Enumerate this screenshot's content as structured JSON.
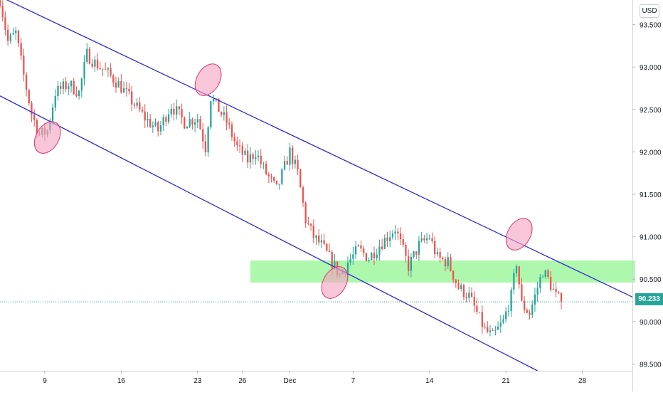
{
  "currency": "USD",
  "last_price_label": "90.233",
  "colors": {
    "up": "#26a69a",
    "down": "#ef5350",
    "channel": "#2b2bd6",
    "zone": "#8ef58e",
    "marker_fill": "#f4a3c0",
    "marker_stroke": "#d83a6e",
    "last_price_line": "#26a69a"
  },
  "chart_data": {
    "type": "candlestick",
    "title": "",
    "xlabel": "",
    "ylabel": "",
    "ylim": [
      89.42,
      93.79
    ],
    "y_ticks": [
      "93.500",
      "93.000",
      "92.500",
      "92.000",
      "91.500",
      "91.000",
      "90.500",
      "90.000",
      "89.500"
    ],
    "y_tick_values": [
      93.5,
      93.0,
      92.5,
      92.0,
      91.5,
      91.0,
      90.5,
      90.0,
      89.5
    ],
    "x_ticks": [
      "9",
      "16",
      "23",
      "26",
      "Dec",
      "7",
      "14",
      "21",
      "28"
    ],
    "x_tick_index": [
      17,
      46,
      75,
      92,
      110,
      134,
      163,
      192,
      221
    ],
    "x_range_index": [
      0,
      240
    ],
    "last_price": 90.233,
    "channel": {
      "upper": [
        [
          0,
          93.83
        ],
        [
          240,
          90.29
        ]
      ],
      "lower": [
        [
          0,
          92.66
        ],
        [
          204,
          89.42
        ]
      ]
    },
    "resistance_zone": {
      "from_index": 95,
      "to_index": 241,
      "low": 90.46,
      "high": 90.72
    },
    "touch_points": [
      {
        "index": 18,
        "value": 92.17
      },
      {
        "index": 79,
        "value": 92.85
      },
      {
        "index": 127,
        "value": 90.46
      },
      {
        "index": 197,
        "value": 91.03
      }
    ],
    "anchors": [
      [
        0,
        93.8
      ],
      [
        3,
        93.3
      ],
      [
        6,
        93.4
      ],
      [
        9,
        92.9
      ],
      [
        12,
        92.45
      ],
      [
        15,
        92.2
      ],
      [
        18,
        92.25
      ],
      [
        21,
        92.7
      ],
      [
        26,
        92.8
      ],
      [
        30,
        92.7
      ],
      [
        33,
        93.15
      ],
      [
        36,
        93.05
      ],
      [
        40,
        92.95
      ],
      [
        45,
        92.8
      ],
      [
        50,
        92.6
      ],
      [
        55,
        92.4
      ],
      [
        60,
        92.25
      ],
      [
        65,
        92.55
      ],
      [
        70,
        92.35
      ],
      [
        75,
        92.4
      ],
      [
        78,
        92.05
      ],
      [
        80,
        92.65
      ],
      [
        83,
        92.5
      ],
      [
        86,
        92.35
      ],
      [
        90,
        92.05
      ],
      [
        94,
        91.9
      ],
      [
        97,
        92.0
      ],
      [
        100,
        91.8
      ],
      [
        105,
        91.55
      ],
      [
        110,
        92.0
      ],
      [
        113,
        91.75
      ],
      [
        116,
        91.2
      ],
      [
        119,
        91.0
      ],
      [
        122,
        90.9
      ],
      [
        126,
        90.7
      ],
      [
        129,
        90.55
      ],
      [
        132,
        90.7
      ],
      [
        136,
        90.85
      ],
      [
        140,
        90.75
      ],
      [
        144,
        90.9
      ],
      [
        150,
        91.1
      ],
      [
        155,
        90.65
      ],
      [
        159,
        90.9
      ],
      [
        163,
        91.0
      ],
      [
        166,
        90.75
      ],
      [
        170,
        90.7
      ],
      [
        174,
        90.4
      ],
      [
        178,
        90.3
      ],
      [
        181,
        90.1
      ],
      [
        184,
        89.9
      ],
      [
        187,
        89.82
      ],
      [
        191,
        90.0
      ],
      [
        194,
        90.3
      ],
      [
        196,
        90.7
      ],
      [
        198,
        90.2
      ],
      [
        201,
        90.1
      ],
      [
        203,
        90.3
      ],
      [
        206,
        90.6
      ],
      [
        208,
        90.5
      ],
      [
        211,
        90.3
      ],
      [
        213,
        90.233
      ]
    ]
  }
}
